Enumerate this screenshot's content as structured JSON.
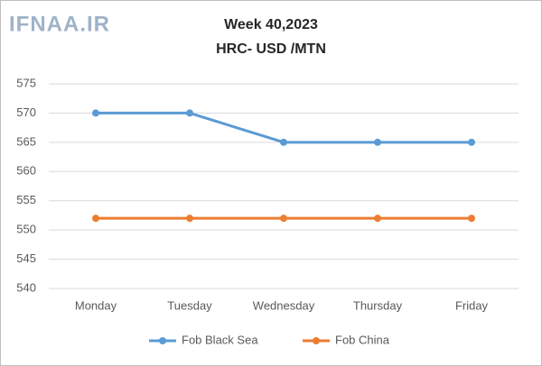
{
  "watermark": "IFNAA.IR",
  "chart_data": {
    "type": "line",
    "title": "Week 40,2023",
    "subtitle": "HRC- USD /MTN",
    "categories": [
      "Monday",
      "Tuesday",
      "Wednesday",
      "Thursday",
      "Friday"
    ],
    "series": [
      {
        "name": "Fob Black Sea",
        "color": "#5b9bd5",
        "values": [
          570,
          570,
          565,
          565,
          565
        ]
      },
      {
        "name": "Fob China",
        "color": "#ed7d31",
        "values": [
          552,
          552,
          552,
          552,
          552
        ]
      }
    ],
    "ylim": [
      540,
      575
    ],
    "yticks": [
      540,
      545,
      550,
      555,
      560,
      565,
      570,
      575
    ],
    "grid": true,
    "legend": "bottom"
  }
}
